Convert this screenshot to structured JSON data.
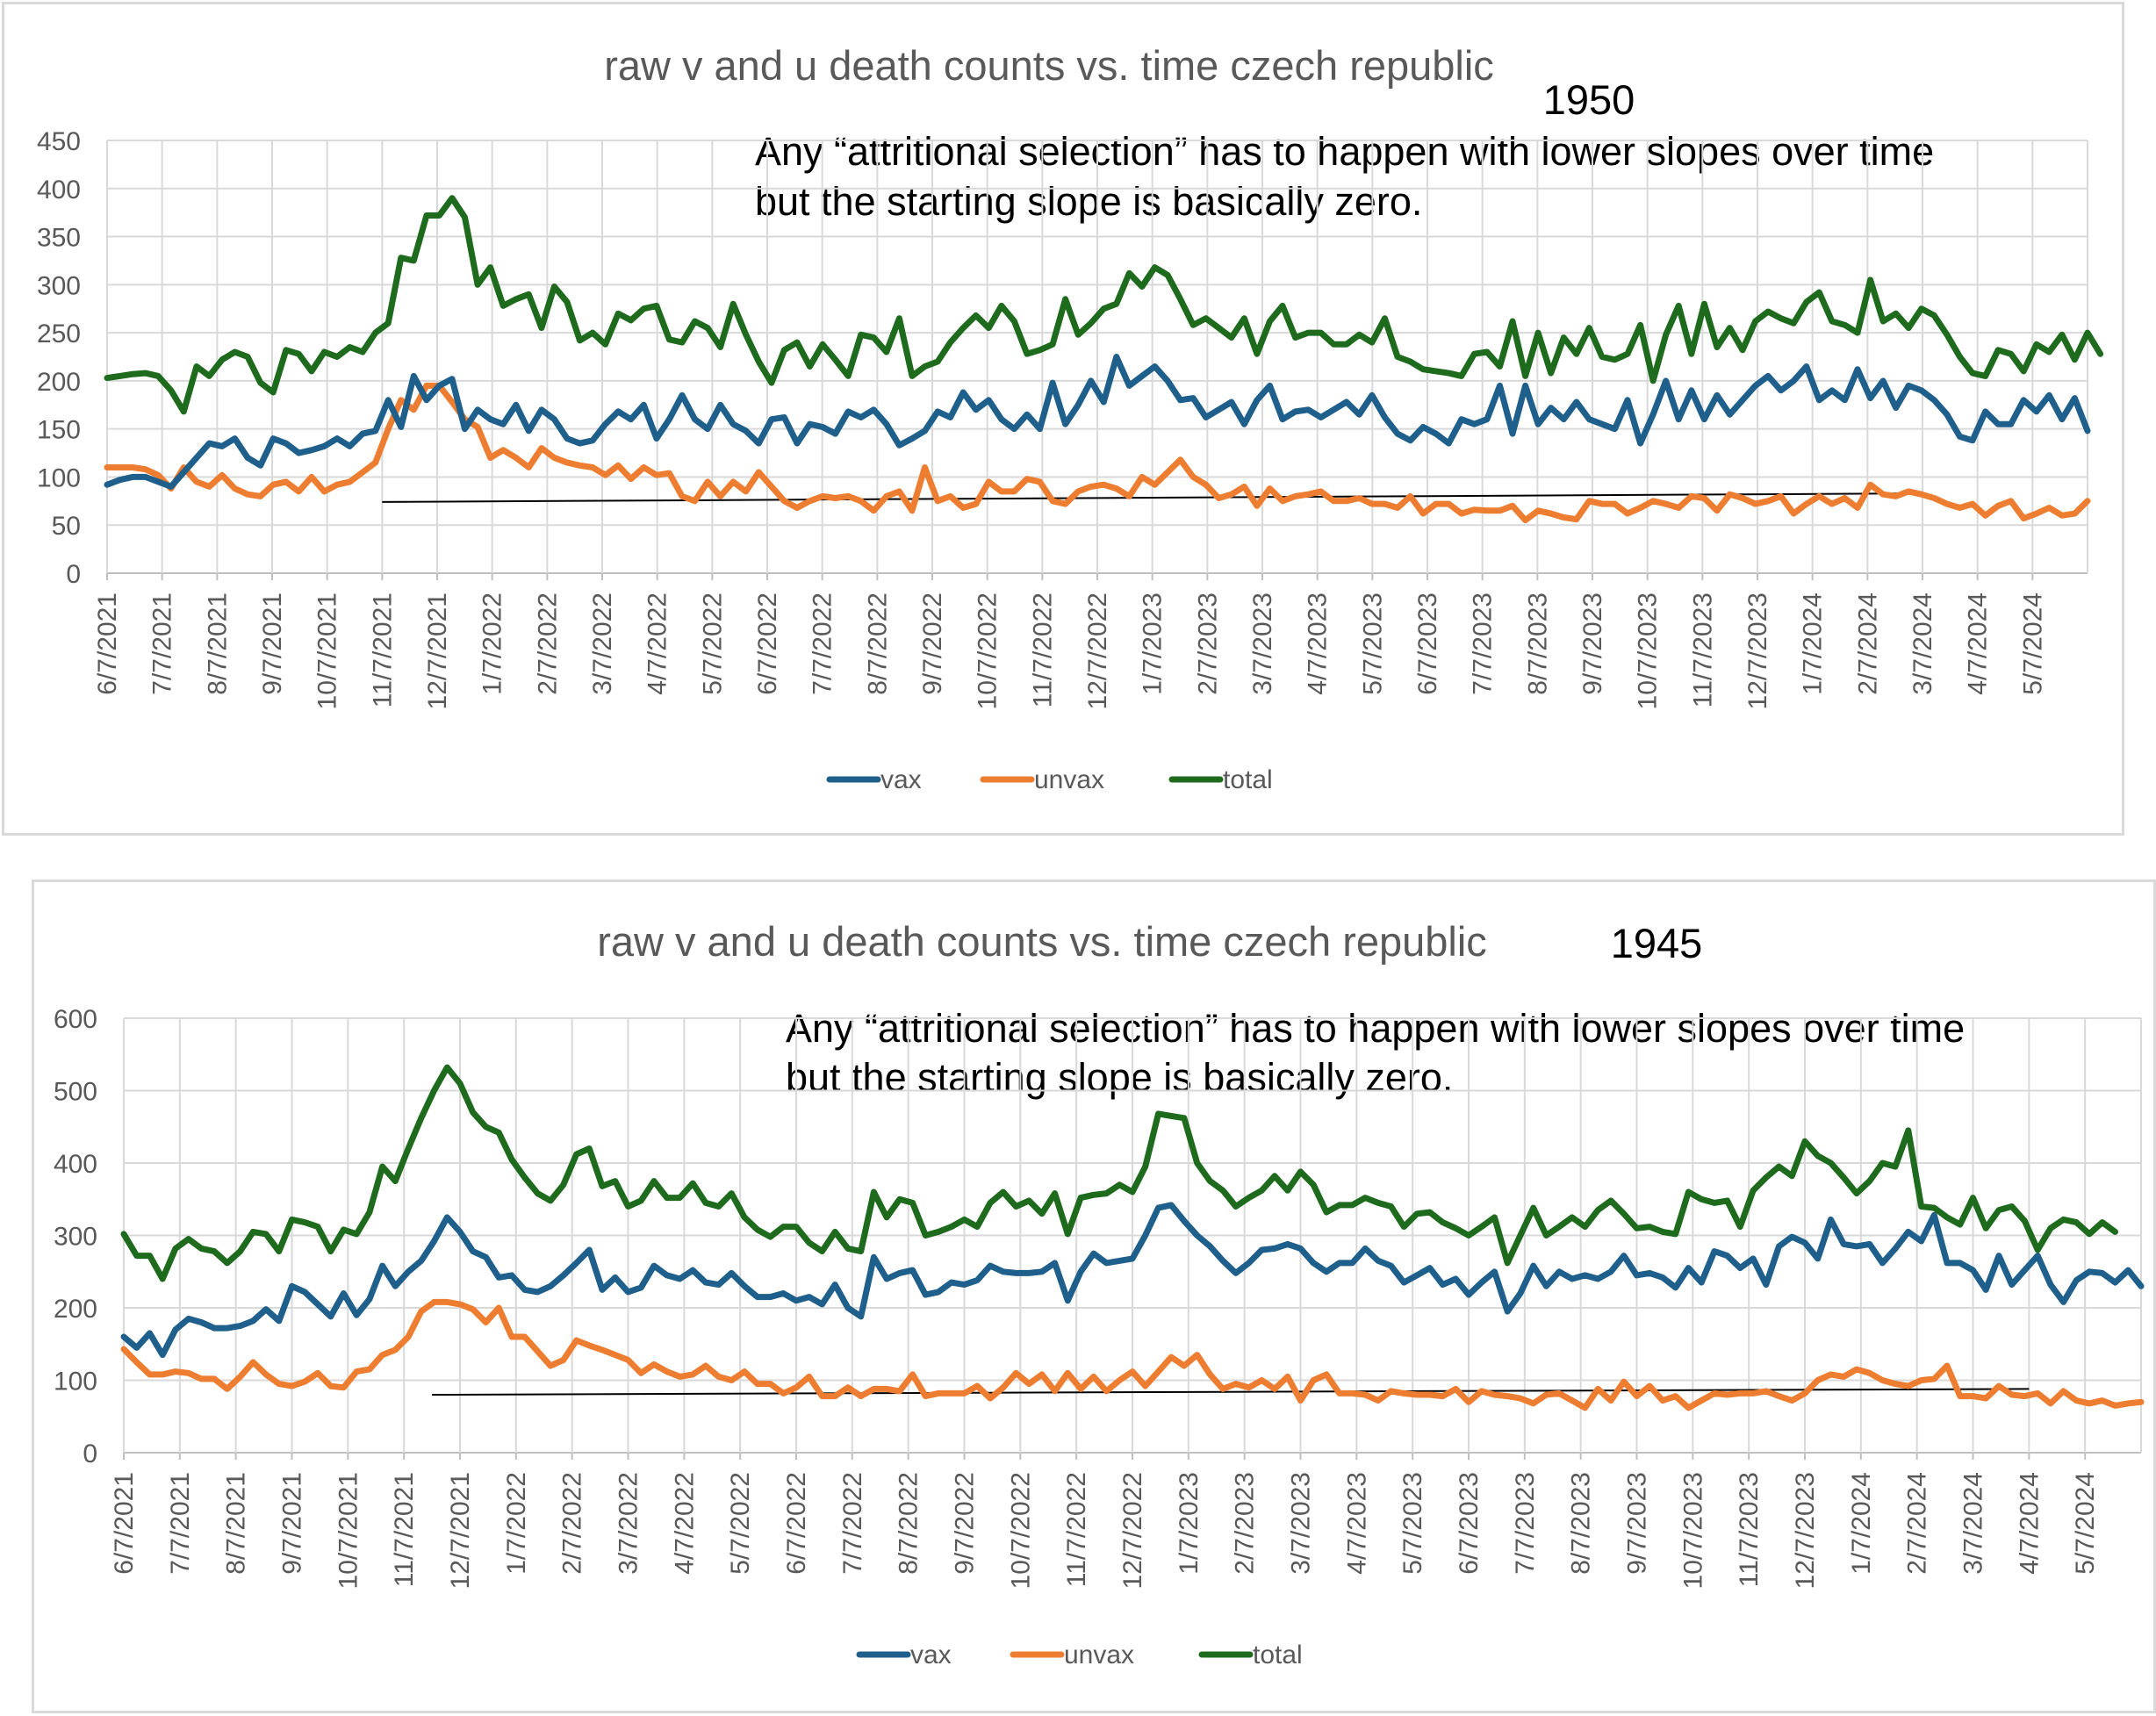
{
  "colors": {
    "vax": "#1f5f8b",
    "unvax": "#ed7d31",
    "total": "#1e6b1e",
    "grid": "#d9d9d9",
    "text": "#595959"
  },
  "chart_data": [
    {
      "type": "line",
      "title": "raw v and u death counts vs. time czech republic",
      "year_label": "1950",
      "annotation": [
        "Any “attritional selection” has to happen with lower slopes over time",
        "but the starting slope is basically zero."
      ],
      "xlabel": "",
      "ylabel": "",
      "ylim": [
        0,
        450
      ],
      "yticks": [
        "0",
        "50",
        "100",
        "150",
        "200",
        "250",
        "300",
        "350",
        "400",
        "450"
      ],
      "ytick_values": [
        0,
        50,
        100,
        150,
        200,
        250,
        300,
        350,
        400,
        450
      ],
      "x_tick_labels": [
        "6/7/2021",
        "7/7/2021",
        "8/7/2021",
        "9/7/2021",
        "10/7/2021",
        "11/7/2021",
        "12/7/2021",
        "1/7/2022",
        "2/7/2022",
        "3/7/2022",
        "4/7/2022",
        "5/7/2022",
        "6/7/2022",
        "7/7/2022",
        "8/7/2022",
        "9/7/2022",
        "10/7/2022",
        "11/7/2022",
        "12/7/2022",
        "1/7/2023",
        "2/7/2023",
        "3/7/2023",
        "4/7/2023",
        "5/7/2023",
        "6/7/2023",
        "7/7/2023",
        "8/7/2023",
        "9/7/2023",
        "10/7/2023",
        "11/7/2023",
        "12/7/2023",
        "1/7/2024",
        "2/7/2024",
        "3/7/2024",
        "4/7/2024",
        "5/7/2024"
      ],
      "legend": [
        "vax",
        "unvax",
        "total"
      ],
      "series": [
        {
          "name": "vax",
          "values": [
            92,
            97,
            100,
            100,
            95,
            90,
            105,
            120,
            135,
            132,
            140,
            120,
            112,
            140,
            135,
            125,
            128,
            132,
            140,
            132,
            145,
            148,
            180,
            152,
            205,
            180,
            195,
            202,
            150,
            170,
            160,
            155,
            175,
            148,
            170,
            160,
            140,
            135,
            138,
            155,
            168,
            160,
            175,
            140,
            160,
            185,
            160,
            150,
            175,
            155,
            148,
            135,
            160,
            162,
            135,
            155,
            152,
            145,
            168,
            162,
            170,
            155,
            133,
            140,
            148,
            168,
            162,
            188,
            170,
            180,
            160,
            150,
            165,
            150,
            198,
            155,
            175,
            200,
            178,
            225,
            195,
            205,
            215,
            200,
            180,
            182,
            162,
            170,
            178,
            155,
            180,
            195,
            160,
            168,
            170,
            162,
            170,
            178,
            165,
            185,
            162,
            145,
            138,
            152,
            145,
            135,
            160,
            155,
            160,
            195,
            145,
            195,
            155,
            172,
            160,
            178,
            160,
            155,
            150,
            180,
            135,
            165,
            200,
            160,
            190,
            160,
            185,
            165,
            180,
            195,
            205,
            190,
            200,
            215,
            180,
            190,
            180,
            212,
            182,
            200,
            172,
            195,
            190,
            180,
            165,
            142,
            138,
            168,
            155,
            155,
            180,
            168,
            185,
            160,
            182,
            148
          ]
        },
        {
          "name": "unvax",
          "values": [
            110,
            110,
            110,
            108,
            102,
            88,
            110,
            95,
            90,
            102,
            88,
            82,
            80,
            92,
            95,
            85,
            100,
            85,
            92,
            95,
            105,
            115,
            150,
            180,
            170,
            195,
            195,
            178,
            160,
            152,
            120,
            128,
            120,
            110,
            130,
            120,
            115,
            112,
            110,
            102,
            112,
            98,
            110,
            102,
            104,
            80,
            75,
            95,
            80,
            95,
            85,
            105,
            90,
            75,
            68,
            75,
            80,
            78,
            80,
            75,
            65,
            80,
            85,
            65,
            110,
            75,
            80,
            68,
            72,
            95,
            85,
            85,
            98,
            95,
            75,
            72,
            85,
            90,
            92,
            88,
            80,
            100,
            92,
            105,
            118,
            100,
            92,
            78,
            82,
            90,
            70,
            88,
            75,
            80,
            82,
            85,
            75,
            75,
            78,
            72,
            72,
            68,
            80,
            62,
            72,
            72,
            62,
            66,
            65,
            65,
            70,
            55,
            65,
            62,
            58,
            56,
            75,
            72,
            72,
            62,
            68,
            75,
            72,
            68,
            80,
            78,
            65,
            82,
            78,
            72,
            75,
            80,
            62,
            72,
            80,
            72,
            78,
            68,
            92,
            82,
            80,
            85,
            82,
            78,
            72,
            68,
            72,
            60,
            70,
            75,
            57,
            62,
            68,
            60,
            62,
            75
          ]
        },
        {
          "name": "total",
          "values": [
            203,
            205,
            207,
            208,
            205,
            190,
            168,
            215,
            205,
            222,
            230,
            225,
            198,
            188,
            232,
            228,
            210,
            230,
            225,
            235,
            230,
            250,
            260,
            328,
            325,
            372,
            372,
            390,
            370,
            300,
            318,
            278,
            285,
            290,
            255,
            298,
            282,
            242,
            250,
            238,
            270,
            263,
            275,
            278,
            243,
            240,
            262,
            255,
            235,
            280,
            248,
            220,
            198,
            232,
            240,
            215,
            238,
            222,
            205,
            248,
            245,
            230,
            265,
            205,
            215,
            220,
            240,
            255,
            268,
            255,
            278,
            262,
            228,
            232,
            238,
            285,
            248,
            260,
            275,
            280,
            312,
            298,
            318,
            310,
            285,
            258,
            265,
            255,
            245,
            265,
            228,
            262,
            278,
            245,
            250,
            250,
            238,
            238,
            248,
            240,
            265,
            225,
            220,
            212,
            210,
            208,
            205,
            228,
            230,
            215,
            262,
            205,
            250,
            208,
            245,
            228,
            255,
            225,
            222,
            228,
            258,
            200,
            248,
            278,
            228,
            280,
            235,
            255,
            232,
            262,
            272,
            265,
            260,
            282,
            292,
            262,
            258,
            250,
            305,
            262,
            270,
            255,
            275,
            268,
            248,
            225,
            208,
            205,
            232,
            228,
            210,
            238,
            230,
            248,
            222,
            250,
            228
          ]
        }
      ],
      "trend_line": {
        "from": {
          "x_index": 5,
          "value": 74
        },
        "to": {
          "x_index": 33,
          "value": 83
        }
      }
    },
    {
      "type": "line",
      "title": "raw v and u death counts vs. time czech republic",
      "year_label": "1945",
      "annotation": [
        "Any “attritional selection” has to happen with lower slopes over time",
        "but the starting slope is basically zero."
      ],
      "xlabel": "",
      "ylabel": "",
      "ylim": [
        0,
        600
      ],
      "yticks": [
        "0",
        "100",
        "200",
        "300",
        "400",
        "500",
        "600"
      ],
      "ytick_values": [
        0,
        100,
        200,
        300,
        400,
        500,
        600
      ],
      "x_tick_labels": [
        "6/7/2021",
        "7/7/2021",
        "8/7/2021",
        "9/7/2021",
        "10/7/2021",
        "11/7/2021",
        "12/7/2021",
        "1/7/2022",
        "2/7/2022",
        "3/7/2022",
        "4/7/2022",
        "5/7/2022",
        "6/7/2022",
        "7/7/2022",
        "8/7/2022",
        "9/7/2022",
        "10/7/2022",
        "11/7/2022",
        "12/7/2022",
        "1/7/2023",
        "2/7/2023",
        "3/7/2023",
        "4/7/2023",
        "5/7/2023",
        "6/7/2023",
        "7/7/2023",
        "8/7/2023",
        "9/7/2023",
        "10/7/2023",
        "11/7/2023",
        "12/7/2023",
        "1/7/2024",
        "2/7/2024",
        "3/7/2024",
        "4/7/2024",
        "5/7/2024"
      ],
      "legend": [
        "vax",
        "unvax",
        "total"
      ],
      "series": [
        {
          "name": "vax",
          "values": [
            160,
            145,
            165,
            135,
            170,
            185,
            180,
            172,
            172,
            175,
            182,
            198,
            182,
            230,
            222,
            205,
            188,
            220,
            190,
            212,
            258,
            230,
            250,
            265,
            292,
            325,
            305,
            278,
            270,
            242,
            245,
            225,
            222,
            230,
            245,
            262,
            280,
            225,
            242,
            222,
            228,
            258,
            245,
            240,
            252,
            235,
            232,
            248,
            230,
            215,
            215,
            220,
            210,
            215,
            205,
            232,
            200,
            188,
            270,
            240,
            248,
            252,
            218,
            222,
            235,
            232,
            238,
            258,
            250,
            248,
            248,
            250,
            262,
            210,
            250,
            275,
            262,
            265,
            268,
            300,
            338,
            342,
            320,
            300,
            285,
            265,
            248,
            262,
            280,
            282,
            288,
            282,
            262,
            250,
            262,
            262,
            282,
            265,
            258,
            235,
            245,
            255,
            232,
            240,
            218,
            235,
            250,
            195,
            220,
            258,
            230,
            250,
            240,
            245,
            240,
            250,
            272,
            245,
            248,
            242,
            228,
            255,
            235,
            278,
            272,
            255,
            268,
            232,
            285,
            298,
            290,
            268,
            322,
            288,
            285,
            288,
            262,
            282,
            305,
            292,
            328,
            262,
            262,
            252,
            225,
            272,
            232,
            252,
            272,
            232,
            208,
            238,
            250,
            248,
            235,
            252,
            230
          ]
        },
        {
          "name": "unvax",
          "values": [
            143,
            125,
            108,
            108,
            112,
            110,
            102,
            102,
            88,
            105,
            125,
            108,
            95,
            92,
            98,
            110,
            92,
            90,
            112,
            115,
            135,
            142,
            160,
            195,
            208,
            208,
            205,
            198,
            180,
            200,
            160,
            160,
            140,
            120,
            128,
            155,
            148,
            142,
            135,
            128,
            110,
            122,
            112,
            105,
            108,
            120,
            105,
            100,
            112,
            95,
            95,
            82,
            90,
            105,
            78,
            78,
            90,
            78,
            88,
            88,
            85,
            108,
            78,
            82,
            82,
            82,
            92,
            75,
            90,
            110,
            95,
            108,
            85,
            110,
            88,
            105,
            85,
            100,
            112,
            92,
            112,
            132,
            120,
            135,
            108,
            88,
            95,
            90,
            100,
            88,
            105,
            72,
            100,
            108,
            82,
            82,
            80,
            72,
            85,
            82,
            80,
            80,
            78,
            88,
            70,
            85,
            80,
            78,
            75,
            68,
            80,
            82,
            72,
            62,
            88,
            72,
            98,
            78,
            92,
            72,
            78,
            62,
            72,
            82,
            80,
            82,
            82,
            85,
            78,
            72,
            82,
            100,
            108,
            105,
            115,
            110,
            100,
            95,
            92,
            100,
            102,
            120,
            78,
            78,
            75,
            92,
            80,
            78,
            82,
            68,
            85,
            72,
            68,
            72,
            65,
            68,
            70
          ]
        },
        {
          "name": "total",
          "values": [
            302,
            272,
            272,
            240,
            282,
            295,
            282,
            278,
            262,
            278,
            305,
            302,
            278,
            322,
            318,
            312,
            278,
            308,
            302,
            332,
            395,
            375,
            420,
            462,
            500,
            532,
            510,
            470,
            450,
            442,
            405,
            380,
            358,
            348,
            370,
            412,
            420,
            368,
            375,
            340,
            348,
            375,
            352,
            352,
            372,
            345,
            340,
            358,
            325,
            308,
            298,
            312,
            312,
            290,
            278,
            305,
            282,
            278,
            360,
            325,
            350,
            345,
            300,
            305,
            312,
            322,
            312,
            345,
            360,
            340,
            348,
            330,
            358,
            302,
            352,
            356,
            358,
            370,
            360,
            395,
            468,
            465,
            462,
            400,
            375,
            362,
            340,
            352,
            362,
            382,
            362,
            388,
            370,
            332,
            342,
            342,
            352,
            345,
            340,
            312,
            330,
            332,
            318,
            310,
            300,
            312,
            325,
            262,
            300,
            338,
            300,
            312,
            325,
            312,
            335,
            348,
            330,
            310,
            312,
            305,
            302,
            360,
            350,
            345,
            348,
            312,
            362,
            380,
            395,
            382,
            430,
            410,
            400,
            380,
            358,
            375,
            400,
            395,
            445,
            340,
            338,
            325,
            315,
            352,
            310,
            335,
            340,
            320,
            280,
            310,
            322,
            318,
            302,
            318,
            305
          ]
        }
      ],
      "trend_line": {
        "from": {
          "x_index": 5.5,
          "value": 80
        },
        "to": {
          "x_index": 34,
          "value": 88
        }
      }
    }
  ]
}
